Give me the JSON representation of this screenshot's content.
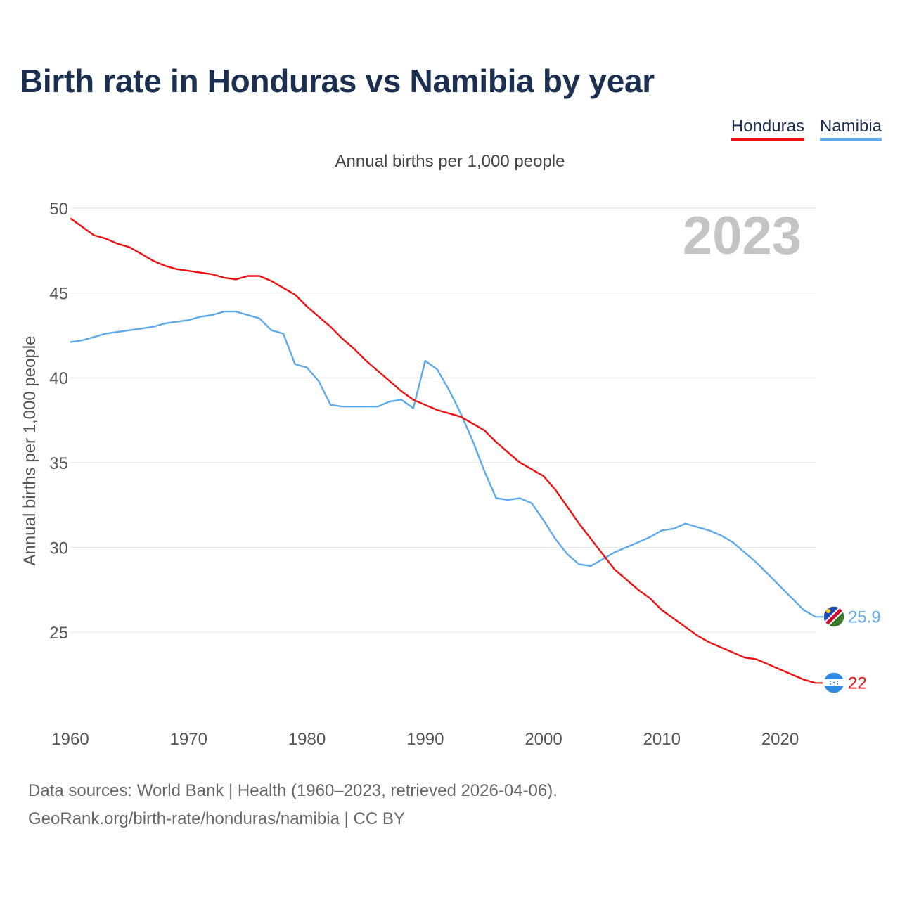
{
  "title": "Birth rate in Honduras vs Namibia by year",
  "subtitle": "Annual births per 1,000 people",
  "legend": {
    "honduras": "Honduras",
    "namibia": "Namibia"
  },
  "year_label": "2023",
  "footer": {
    "line1": "Data sources: World Bank | Health (1960–2023, retrieved 2026-04-06).",
    "line2": "GeoRank.org/birth-rate/honduras/namibia | CC BY"
  },
  "chart_data": {
    "type": "line",
    "title": "Birth rate in Honduras vs Namibia by year",
    "ylabel": "Annual births per 1,000 people",
    "xlabel": "",
    "xlim": [
      1960,
      2023
    ],
    "ylim": [
      20.5,
      50
    ],
    "yticks": [
      25,
      30,
      35,
      40,
      45,
      50
    ],
    "xticks": [
      1960,
      1970,
      1980,
      1990,
      2000,
      2010,
      2020
    ],
    "grid": true,
    "x": [
      1960,
      1961,
      1962,
      1963,
      1964,
      1965,
      1966,
      1967,
      1968,
      1969,
      1970,
      1971,
      1972,
      1973,
      1974,
      1975,
      1976,
      1977,
      1978,
      1979,
      1980,
      1981,
      1982,
      1983,
      1984,
      1985,
      1986,
      1987,
      1988,
      1989,
      1990,
      1991,
      1992,
      1993,
      1994,
      1995,
      1996,
      1997,
      1998,
      1999,
      2000,
      2001,
      2002,
      2003,
      2004,
      2005,
      2006,
      2007,
      2008,
      2009,
      2010,
      2011,
      2012,
      2013,
      2014,
      2015,
      2016,
      2017,
      2018,
      2019,
      2020,
      2021,
      2022,
      2023
    ],
    "series": [
      {
        "name": "Honduras",
        "color": "#ee1111",
        "end_label": "22",
        "values": [
          49.4,
          48.9,
          48.4,
          48.2,
          47.9,
          47.7,
          47.3,
          46.9,
          46.6,
          46.4,
          46.3,
          46.2,
          46.1,
          45.9,
          45.8,
          46.0,
          46.0,
          45.7,
          45.3,
          44.9,
          44.2,
          43.6,
          43.0,
          42.3,
          41.7,
          41.0,
          40.4,
          39.8,
          39.2,
          38.7,
          38.4,
          38.1,
          37.9,
          37.7,
          37.3,
          36.9,
          36.2,
          35.6,
          35.0,
          34.6,
          34.2,
          33.4,
          32.4,
          31.4,
          30.5,
          29.6,
          28.7,
          28.1,
          27.5,
          27.0,
          26.3,
          25.8,
          25.3,
          24.8,
          24.4,
          24.1,
          23.8,
          23.5,
          23.4,
          23.1,
          22.8,
          22.5,
          22.2,
          22.0
        ]
      },
      {
        "name": "Namibia",
        "color": "#5ea9ea",
        "end_label": "25.9",
        "values": [
          42.1,
          42.2,
          42.4,
          42.6,
          42.7,
          42.8,
          42.9,
          43.0,
          43.2,
          43.3,
          43.4,
          43.6,
          43.7,
          43.9,
          43.9,
          43.7,
          43.5,
          42.8,
          42.6,
          40.8,
          40.6,
          39.8,
          38.4,
          38.3,
          38.3,
          38.3,
          38.3,
          38.6,
          38.7,
          38.2,
          41.0,
          40.5,
          39.3,
          37.9,
          36.3,
          34.5,
          32.9,
          32.8,
          32.9,
          32.6,
          31.6,
          30.5,
          29.6,
          29.0,
          28.9,
          29.3,
          29.7,
          30.0,
          30.3,
          30.6,
          31.0,
          31.1,
          31.4,
          31.2,
          31.0,
          30.7,
          30.3,
          29.7,
          29.1,
          28.4,
          27.7,
          27.0,
          26.3,
          25.9
        ]
      }
    ]
  }
}
